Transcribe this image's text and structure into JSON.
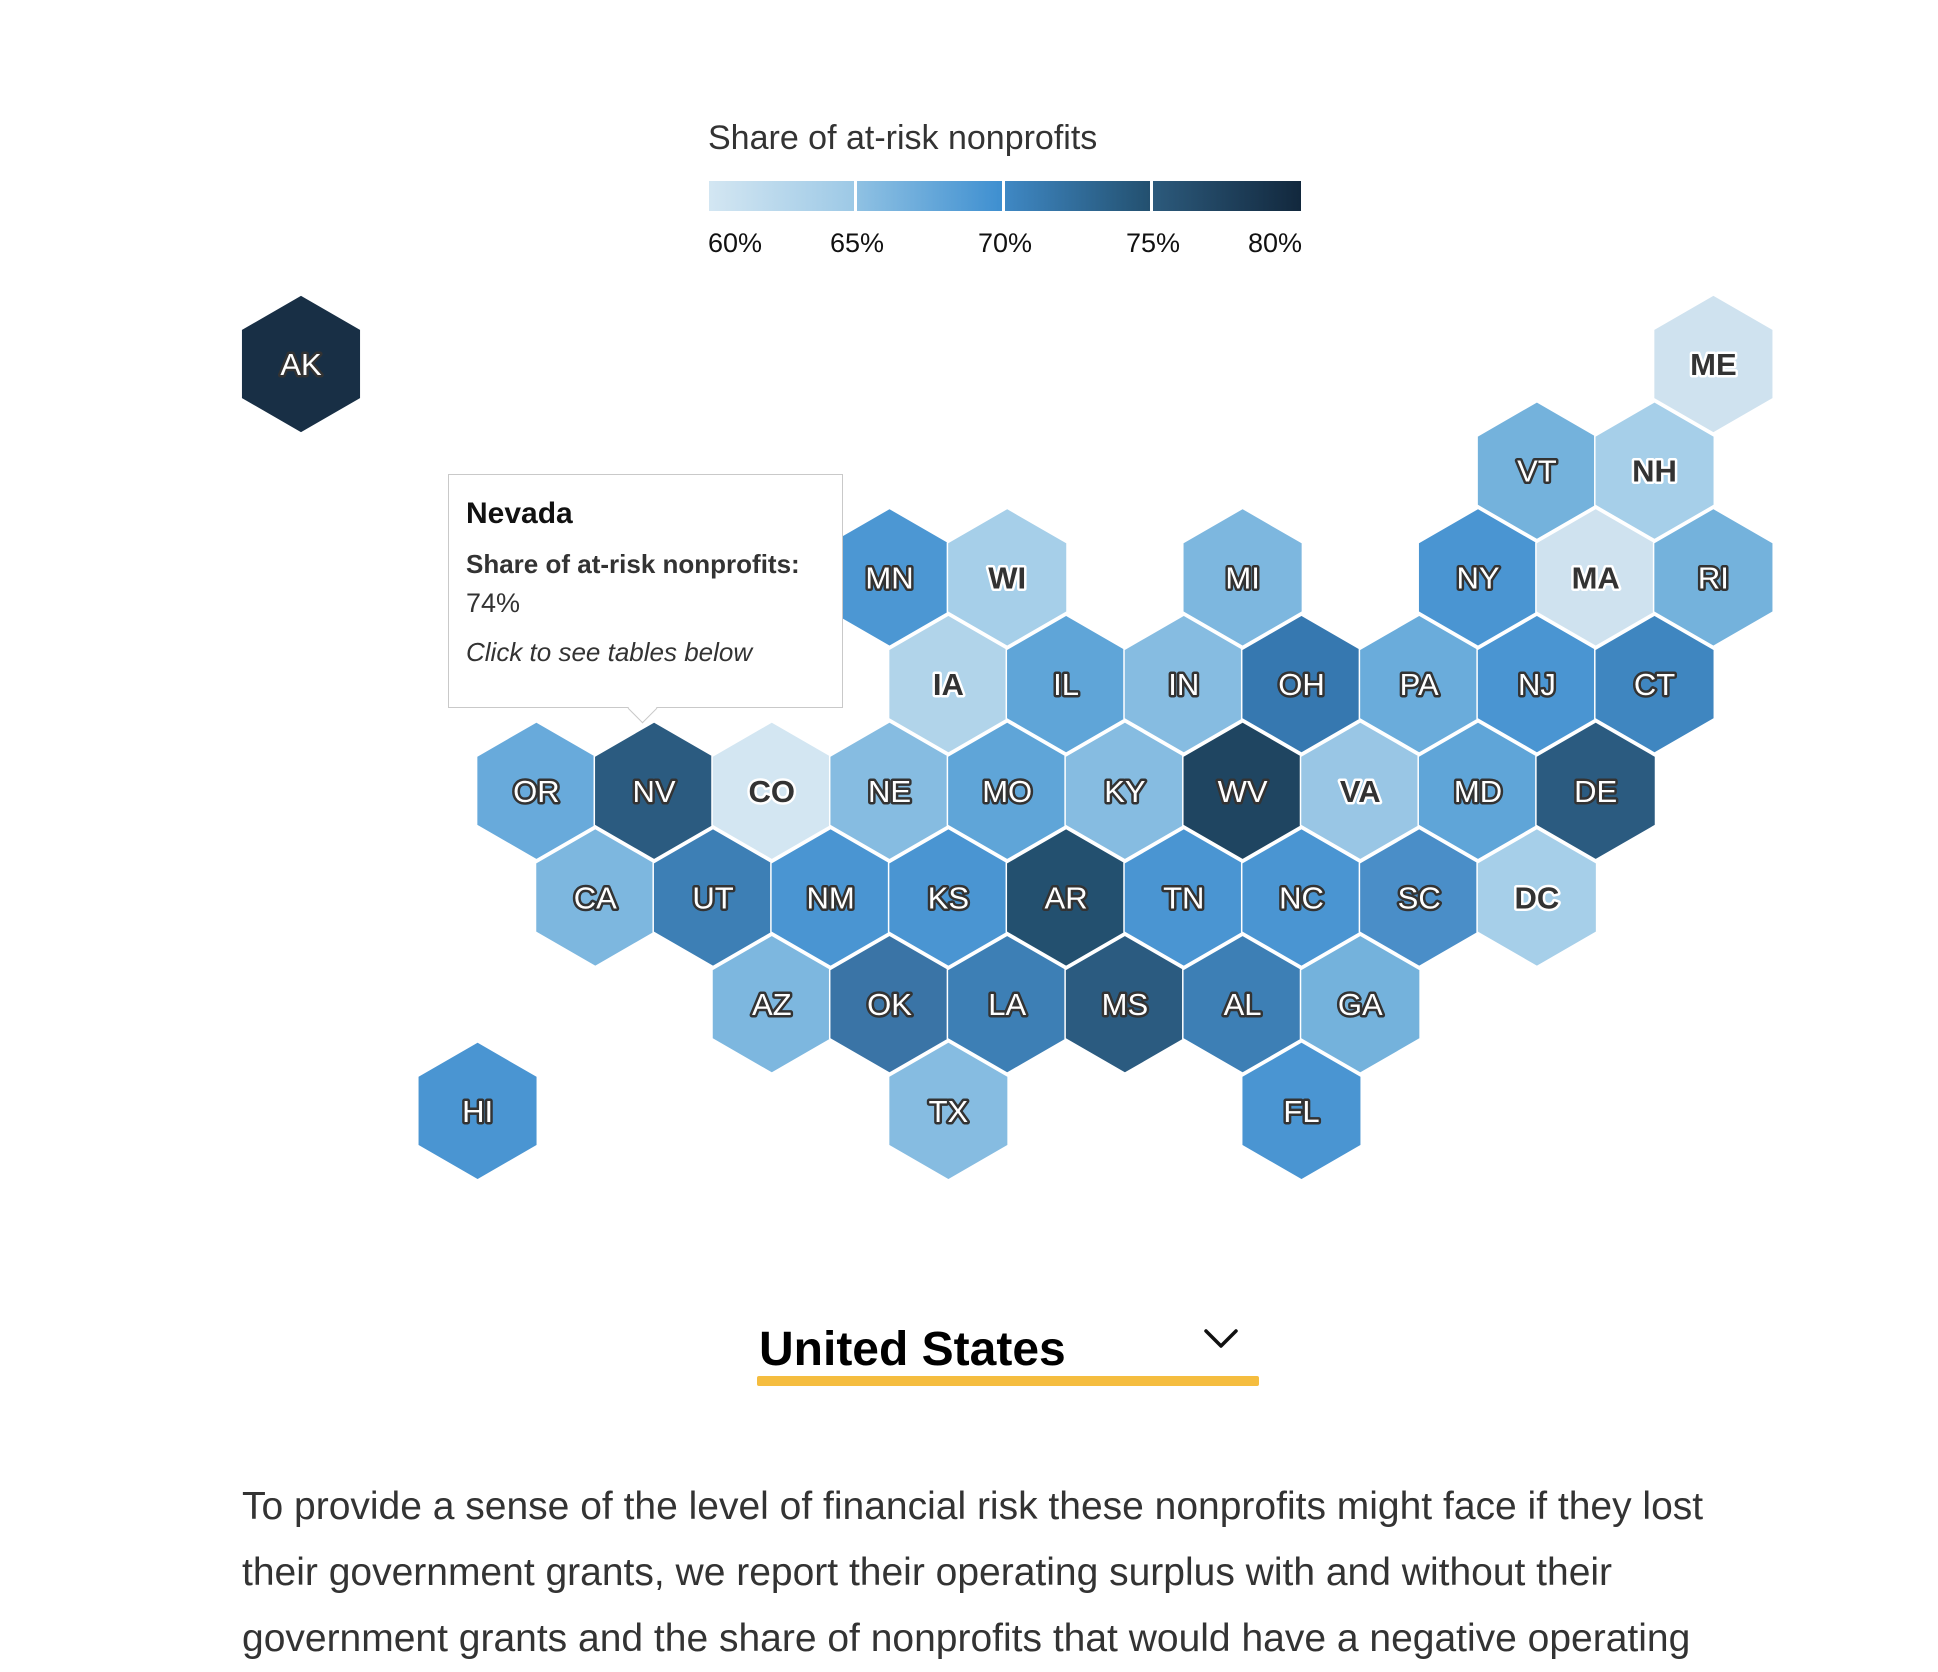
{
  "legend": {
    "title": "Share of at-risk nonprofits",
    "ticks": [
      "60%",
      "65%",
      "70%",
      "75%",
      "80%"
    ],
    "segments": [
      {
        "from": "#d3e6f2",
        "to": "#9dc9e6"
      },
      {
        "from": "#8fc1e3",
        "to": "#3e8fd0"
      },
      {
        "from": "#3f88c4",
        "to": "#23506f"
      },
      {
        "from": "#2c5a7c",
        "to": "#12283d"
      }
    ]
  },
  "chart_data": {
    "type": "hexbin-map",
    "title": "Share of at-risk nonprofits",
    "scale": {
      "min": 60,
      "max": 80,
      "unit": "%"
    },
    "states": [
      {
        "abbr": "AK",
        "color": "#182f45"
      },
      {
        "abbr": "ME",
        "color": "#cfe2ef"
      },
      {
        "abbr": "VT",
        "color": "#74b2dc"
      },
      {
        "abbr": "NH",
        "color": "#a6cfe9"
      },
      {
        "abbr": "MN",
        "color": "#4c97d3"
      },
      {
        "abbr": "WI",
        "color": "#a6cfe9"
      },
      {
        "abbr": "MI",
        "color": "#7db7df"
      },
      {
        "abbr": "NY",
        "color": "#4a95d2"
      },
      {
        "abbr": "MA",
        "color": "#cfe2ef"
      },
      {
        "abbr": "RI",
        "color": "#74b2dc"
      },
      {
        "abbr": "IA",
        "color": "#b1d4ea"
      },
      {
        "abbr": "IL",
        "color": "#5fa5d8"
      },
      {
        "abbr": "IN",
        "color": "#86bce1"
      },
      {
        "abbr": "OH",
        "color": "#3678b0"
      },
      {
        "abbr": "PA",
        "color": "#6aacdb"
      },
      {
        "abbr": "NJ",
        "color": "#4a95d2"
      },
      {
        "abbr": "CT",
        "color": "#3f86c0"
      },
      {
        "abbr": "OR",
        "color": "#68aadb"
      },
      {
        "abbr": "NV",
        "color": "#2b5b80",
        "value": "74%",
        "name": "Nevada"
      },
      {
        "abbr": "CO",
        "color": "#d3e6f2"
      },
      {
        "abbr": "NE",
        "color": "#86bce1"
      },
      {
        "abbr": "MO",
        "color": "#5fa5d8"
      },
      {
        "abbr": "KY",
        "color": "#86bce1"
      },
      {
        "abbr": "WV",
        "color": "#1f4561"
      },
      {
        "abbr": "VA",
        "color": "#99c6e5"
      },
      {
        "abbr": "MD",
        "color": "#5fa5d8"
      },
      {
        "abbr": "DE",
        "color": "#2b5b80"
      },
      {
        "abbr": "CA",
        "color": "#7db7df"
      },
      {
        "abbr": "UT",
        "color": "#3d7fb5"
      },
      {
        "abbr": "NM",
        "color": "#4a95d2"
      },
      {
        "abbr": "KS",
        "color": "#4a95d2"
      },
      {
        "abbr": "AR",
        "color": "#23506f"
      },
      {
        "abbr": "TN",
        "color": "#4a95d2"
      },
      {
        "abbr": "NC",
        "color": "#4a95d2"
      },
      {
        "abbr": "SC",
        "color": "#4a8ec8"
      },
      {
        "abbr": "DC",
        "color": "#a6cfe9"
      },
      {
        "abbr": "AZ",
        "color": "#7db7df"
      },
      {
        "abbr": "OK",
        "color": "#3a74a6"
      },
      {
        "abbr": "LA",
        "color": "#3d7fb5"
      },
      {
        "abbr": "MS",
        "color": "#2b5b80"
      },
      {
        "abbr": "AL",
        "color": "#3d7fb5"
      },
      {
        "abbr": "GA",
        "color": "#74b2dc"
      },
      {
        "abbr": "HI",
        "color": "#4a95d2"
      },
      {
        "abbr": "TX",
        "color": "#86bce1"
      },
      {
        "abbr": "FL",
        "color": "#4a95d2"
      }
    ]
  },
  "tooltip": {
    "title": "Nevada",
    "label": "Share of at-risk nonprofits:",
    "value": "74%",
    "note": "Click to see tables below"
  },
  "geo_select": {
    "value": "United States",
    "icon": "chevron-down-icon",
    "underline_color": "#f5bd3f"
  },
  "body_text": "To provide a sense of the level of financial risk these nonprofits might face if they lost their government grants, we report their operating surplus with and without their government grants and the share of nonprofits that would have a negative operating"
}
